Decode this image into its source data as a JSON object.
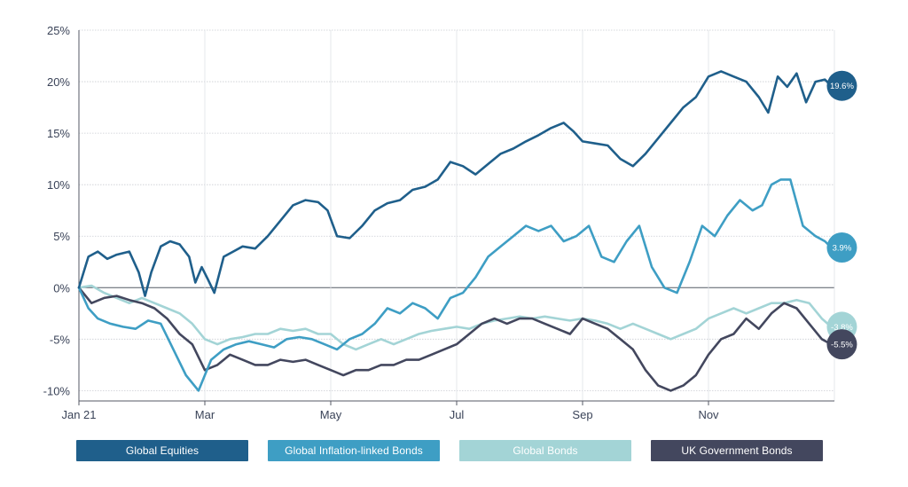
{
  "chart_data": {
    "type": "line",
    "ylim": [
      -11,
      25
    ],
    "yticks": [
      -10,
      -5,
      0,
      5,
      10,
      15,
      20,
      25
    ],
    "ytick_labels": [
      "-10%",
      "-5%",
      "0%",
      "5%",
      "10%",
      "15%",
      "20%",
      "25%"
    ],
    "xlim": [
      0,
      12
    ],
    "xticks": [
      0,
      2,
      4,
      6,
      8,
      10
    ],
    "xtick_labels": [
      "Jan 21",
      "Mar",
      "May",
      "Jul",
      "Sep",
      "Nov"
    ],
    "grid": true,
    "series": [
      {
        "name": "Global Equities",
        "color": "#1f5f8b",
        "end_label": "19.6%",
        "x": [
          0,
          0.15,
          0.3,
          0.45,
          0.6,
          0.8,
          0.95,
          1.05,
          1.15,
          1.3,
          1.45,
          1.6,
          1.75,
          1.85,
          1.95,
          2.05,
          2.15,
          2.3,
          2.45,
          2.6,
          2.8,
          3.0,
          3.2,
          3.4,
          3.6,
          3.8,
          3.95,
          4.1,
          4.3,
          4.5,
          4.7,
          4.9,
          5.1,
          5.3,
          5.5,
          5.7,
          5.9,
          6.1,
          6.3,
          6.5,
          6.7,
          6.9,
          7.1,
          7.3,
          7.5,
          7.7,
          7.85,
          8.0,
          8.2,
          8.4,
          8.6,
          8.8,
          9.0,
          9.2,
          9.4,
          9.6,
          9.8,
          10.0,
          10.2,
          10.4,
          10.6,
          10.8,
          10.95,
          11.1,
          11.25,
          11.4,
          11.55,
          11.7,
          11.85,
          11.95
        ],
        "values": [
          0,
          3,
          3.5,
          2.8,
          3.2,
          3.5,
          1.5,
          -0.8,
          1.5,
          4.0,
          4.5,
          4.2,
          3.0,
          0.5,
          2.0,
          0.8,
          -0.5,
          3.0,
          3.5,
          4.0,
          3.8,
          5.0,
          6.5,
          8.0,
          8.5,
          8.3,
          7.5,
          5.0,
          4.8,
          6.0,
          7.5,
          8.2,
          8.5,
          9.5,
          9.8,
          10.5,
          12.2,
          11.8,
          11.0,
          12.0,
          13.0,
          13.5,
          14.2,
          14.8,
          15.5,
          16.0,
          15.2,
          14.2,
          14.0,
          13.8,
          12.5,
          11.8,
          13.0,
          14.5,
          16.0,
          17.5,
          18.5,
          20.5,
          21.0,
          20.5,
          20.0,
          18.5,
          17.0,
          20.5,
          19.5,
          20.8,
          18.0,
          20.0,
          20.2,
          19.6
        ]
      },
      {
        "name": "Global Inflation-linked Bonds",
        "color": "#3e9ec4",
        "end_label": "3.9%",
        "x": [
          0,
          0.15,
          0.3,
          0.5,
          0.7,
          0.9,
          1.1,
          1.3,
          1.5,
          1.7,
          1.9,
          2.0,
          2.1,
          2.3,
          2.5,
          2.7,
          2.9,
          3.1,
          3.3,
          3.5,
          3.7,
          3.9,
          4.1,
          4.3,
          4.5,
          4.7,
          4.9,
          5.1,
          5.3,
          5.5,
          5.7,
          5.9,
          6.1,
          6.3,
          6.5,
          6.7,
          6.9,
          7.1,
          7.3,
          7.5,
          7.7,
          7.9,
          8.1,
          8.3,
          8.5,
          8.7,
          8.9,
          9.1,
          9.3,
          9.5,
          9.7,
          9.9,
          10.1,
          10.3,
          10.5,
          10.7,
          10.85,
          11.0,
          11.15,
          11.3,
          11.5,
          11.7,
          11.85,
          11.95
        ],
        "values": [
          0,
          -2.0,
          -3.0,
          -3.5,
          -3.8,
          -4.0,
          -3.2,
          -3.5,
          -6.0,
          -8.5,
          -10.0,
          -8.5,
          -7.0,
          -6.0,
          -5.5,
          -5.2,
          -5.5,
          -5.8,
          -5.0,
          -4.8,
          -5.0,
          -5.5,
          -6.0,
          -5.0,
          -4.5,
          -3.5,
          -2.0,
          -2.5,
          -1.5,
          -2.0,
          -3.0,
          -1.0,
          -0.5,
          1.0,
          3.0,
          4.0,
          5.0,
          6.0,
          5.5,
          6.0,
          4.5,
          5.0,
          6.0,
          3.0,
          2.5,
          4.5,
          6.0,
          2.0,
          0.0,
          -0.5,
          2.5,
          6.0,
          5.0,
          7.0,
          8.5,
          7.5,
          8.0,
          10.0,
          10.5,
          10.5,
          6.0,
          5.0,
          4.5,
          3.9
        ]
      },
      {
        "name": "Global Bonds",
        "color": "#a3d4d6",
        "end_label": "-3.8%",
        "x": [
          0,
          0.2,
          0.4,
          0.6,
          0.8,
          1.0,
          1.2,
          1.4,
          1.6,
          1.8,
          2.0,
          2.2,
          2.4,
          2.6,
          2.8,
          3.0,
          3.2,
          3.4,
          3.6,
          3.8,
          4.0,
          4.2,
          4.4,
          4.6,
          4.8,
          5.0,
          5.2,
          5.4,
          5.6,
          5.8,
          6.0,
          6.2,
          6.4,
          6.6,
          6.8,
          7.0,
          7.2,
          7.4,
          7.6,
          7.8,
          8.0,
          8.2,
          8.4,
          8.6,
          8.8,
          9.0,
          9.2,
          9.4,
          9.6,
          9.8,
          10.0,
          10.2,
          10.4,
          10.6,
          10.8,
          11.0,
          11.2,
          11.4,
          11.6,
          11.8,
          11.95
        ],
        "values": [
          0,
          0.2,
          -0.5,
          -1.0,
          -1.5,
          -1.0,
          -1.5,
          -2.0,
          -2.5,
          -3.5,
          -5.0,
          -5.5,
          -5.0,
          -4.8,
          -4.5,
          -4.5,
          -4.0,
          -4.2,
          -4.0,
          -4.5,
          -4.5,
          -5.5,
          -6.0,
          -5.5,
          -5.0,
          -5.5,
          -5.0,
          -4.5,
          -4.2,
          -4.0,
          -3.8,
          -4.0,
          -3.5,
          -3.2,
          -3.0,
          -2.8,
          -3.0,
          -2.8,
          -3.0,
          -3.2,
          -3.0,
          -3.2,
          -3.5,
          -4.0,
          -3.5,
          -4.0,
          -4.5,
          -5.0,
          -4.5,
          -4.0,
          -3.0,
          -2.5,
          -2.0,
          -2.5,
          -2.0,
          -1.5,
          -1.5,
          -1.2,
          -1.5,
          -3.0,
          -3.8
        ]
      },
      {
        "name": "UK Government Bonds",
        "color": "#43475e",
        "end_label": "-5.5%",
        "x": [
          0,
          0.2,
          0.4,
          0.6,
          0.8,
          1.0,
          1.2,
          1.4,
          1.6,
          1.8,
          2.0,
          2.2,
          2.4,
          2.6,
          2.8,
          3.0,
          3.2,
          3.4,
          3.6,
          3.8,
          4.0,
          4.2,
          4.4,
          4.6,
          4.8,
          5.0,
          5.2,
          5.4,
          5.6,
          5.8,
          6.0,
          6.2,
          6.4,
          6.6,
          6.8,
          7.0,
          7.2,
          7.4,
          7.6,
          7.8,
          8.0,
          8.2,
          8.4,
          8.6,
          8.8,
          9.0,
          9.2,
          9.4,
          9.6,
          9.8,
          10.0,
          10.2,
          10.4,
          10.6,
          10.8,
          11.0,
          11.2,
          11.4,
          11.6,
          11.8,
          11.95
        ],
        "values": [
          0,
          -1.5,
          -1.0,
          -0.8,
          -1.2,
          -1.5,
          -2.0,
          -3.0,
          -4.5,
          -5.5,
          -8.0,
          -7.5,
          -6.5,
          -7.0,
          -7.5,
          -7.5,
          -7.0,
          -7.2,
          -7.0,
          -7.5,
          -8.0,
          -8.5,
          -8.0,
          -8.0,
          -7.5,
          -7.5,
          -7.0,
          -7.0,
          -6.5,
          -6.0,
          -5.5,
          -4.5,
          -3.5,
          -3.0,
          -3.5,
          -3.0,
          -3.0,
          -3.5,
          -4.0,
          -4.5,
          -3.0,
          -3.5,
          -4.0,
          -5.0,
          -6.0,
          -8.0,
          -9.5,
          -10.0,
          -9.5,
          -8.5,
          -6.5,
          -5.0,
          -4.5,
          -3.0,
          -4.0,
          -2.5,
          -1.5,
          -2.0,
          -3.5,
          -5.0,
          -5.5
        ]
      }
    ]
  },
  "legend": {
    "items": [
      {
        "label": "Global Equities",
        "color": "#1f5f8b"
      },
      {
        "label": "Global Inflation-linked Bonds",
        "color": "#3e9ec4"
      },
      {
        "label": "Global Bonds",
        "color": "#a3d4d6"
      },
      {
        "label": "UK Government Bonds",
        "color": "#43475e"
      }
    ]
  }
}
